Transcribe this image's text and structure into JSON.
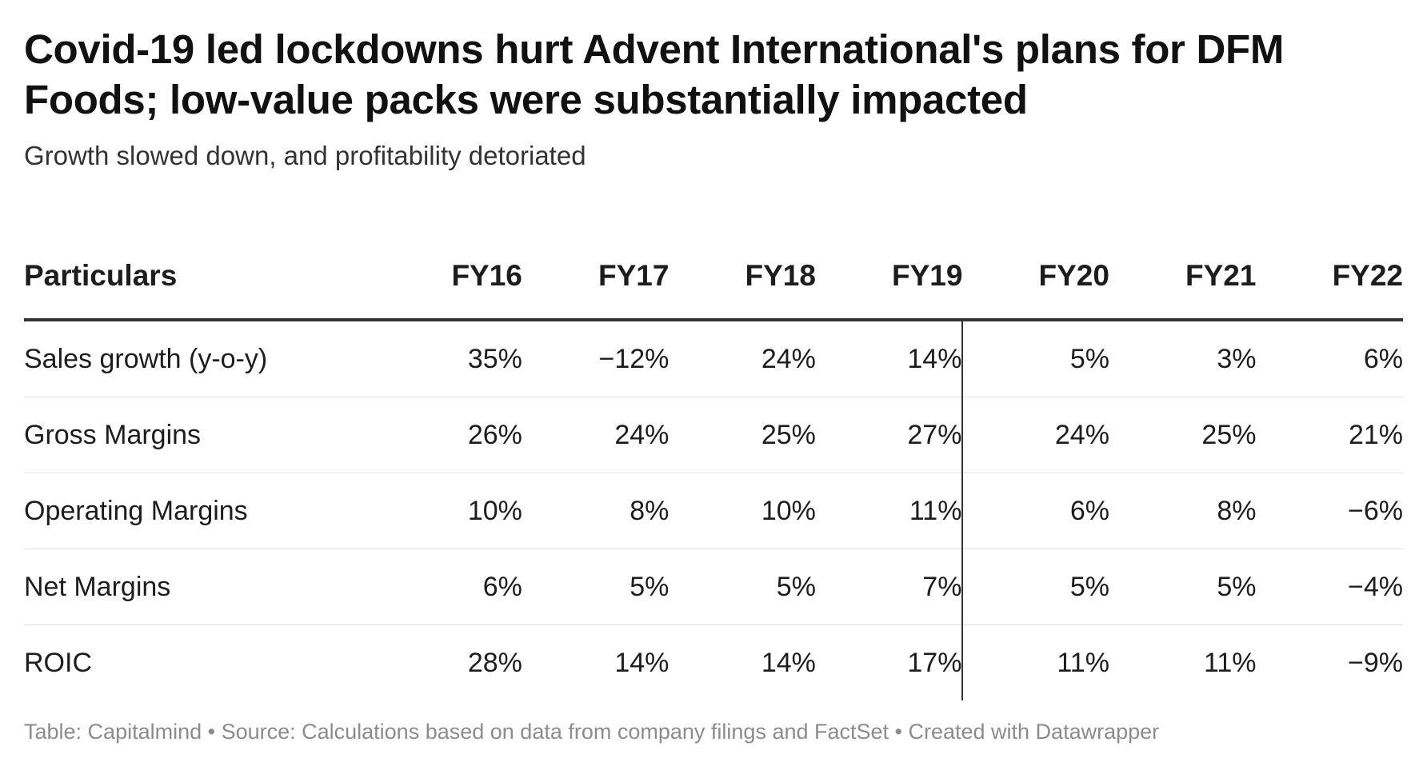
{
  "header": {
    "title": "Covid-19 led lockdowns hurt Advent International's plans for DFM Foods; low-value packs were substantially impacted",
    "subtitle": "Growth slowed down, and profitability detoriated"
  },
  "footer": {
    "credit": "Table: Capitalmind • Source: Calculations based on data from company filings and FactSet • Created with Datawrapper"
  },
  "chart_data": {
    "type": "table",
    "title": "Covid-19 led lockdowns hurt Advent International's plans for DFM Foods; low-value packs were substantially impacted",
    "subtitle": "Growth slowed down, and profitability detoriated",
    "columns": [
      "Particulars",
      "FY16",
      "FY17",
      "FY18",
      "FY19",
      "FY20",
      "FY21",
      "FY22"
    ],
    "divider_before_column": "FY20",
    "rows": [
      {
        "label": "Sales growth (y-o-y)",
        "values": [
          "35%",
          "−12%",
          "24%",
          "14%",
          "5%",
          "3%",
          "6%"
        ]
      },
      {
        "label": "Gross Margins",
        "values": [
          "26%",
          "24%",
          "25%",
          "27%",
          "24%",
          "25%",
          "21%"
        ]
      },
      {
        "label": "Operating Margins",
        "values": [
          "10%",
          "8%",
          "10%",
          "11%",
          "6%",
          "8%",
          "−6%"
        ]
      },
      {
        "label": "Net Margins",
        "values": [
          "6%",
          "5%",
          "5%",
          "7%",
          "5%",
          "5%",
          "−4%"
        ]
      },
      {
        "label": "ROIC",
        "values": [
          "28%",
          "14%",
          "14%",
          "17%",
          "11%",
          "11%",
          "−9%"
        ]
      }
    ]
  }
}
